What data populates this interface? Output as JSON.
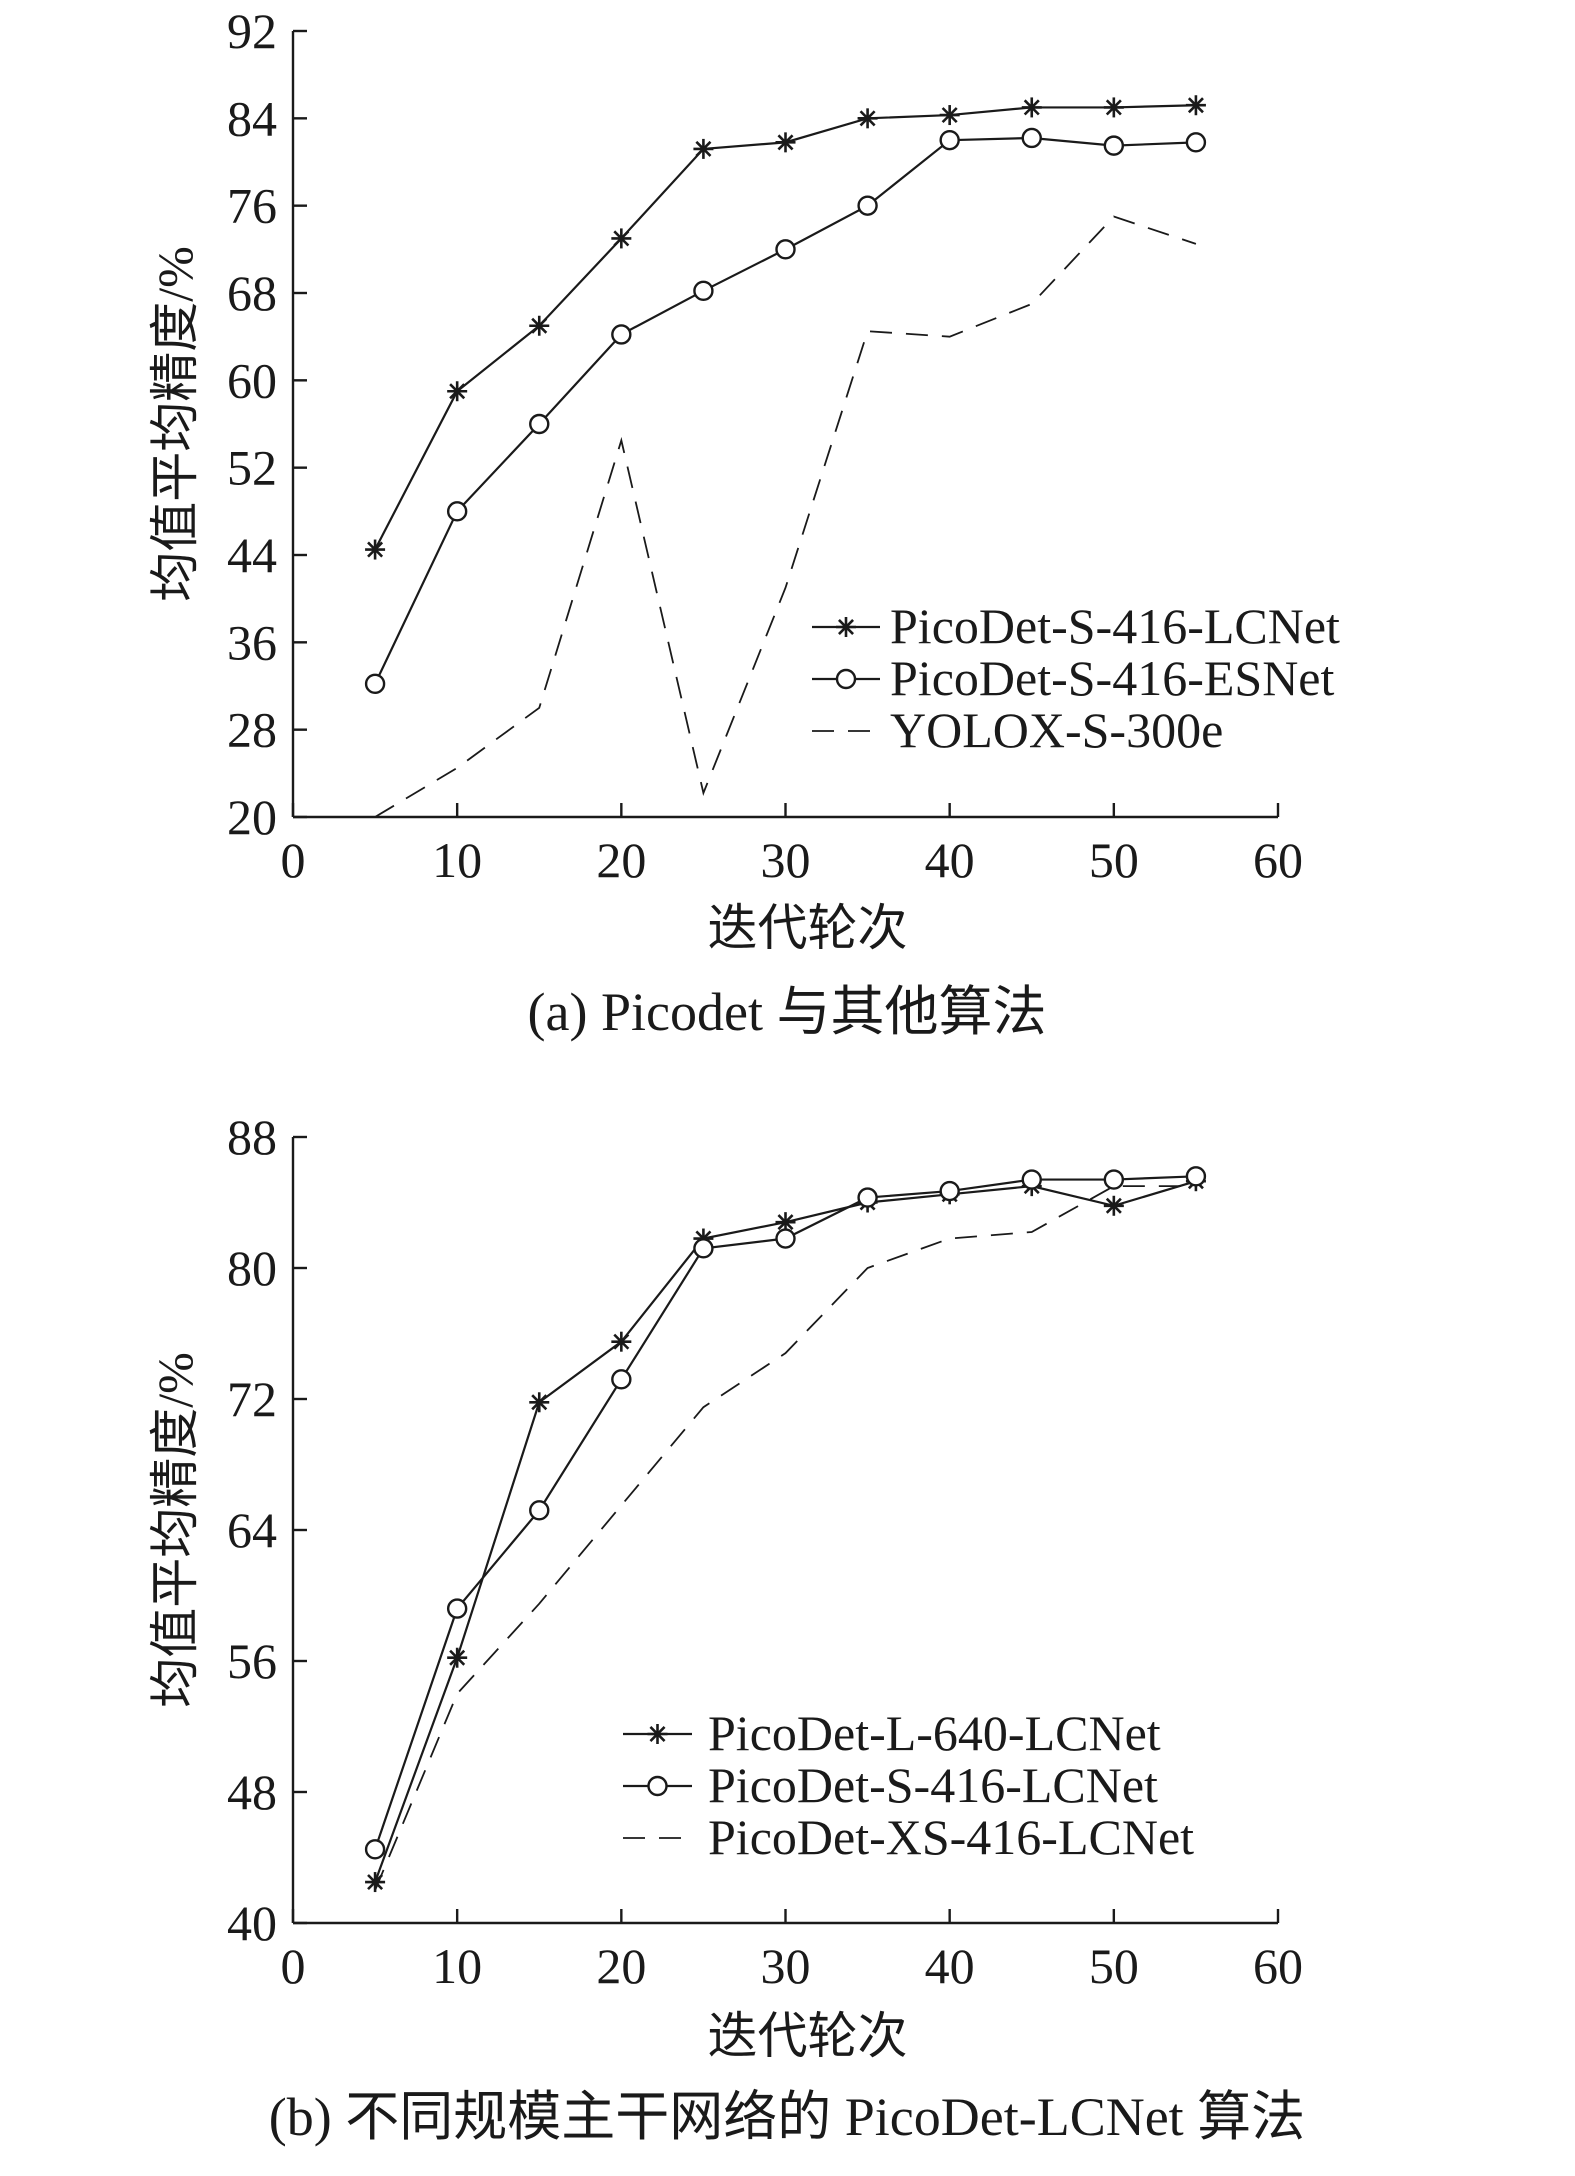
{
  "chart_data": [
    {
      "type": "line",
      "caption": "(a) Picodet 与其他算法",
      "xlabel": "迭代轮次",
      "ylabel": "均值平均精度/%",
      "xlim": [
        0,
        60
      ],
      "ylim": [
        20,
        92
      ],
      "xticks": [
        0,
        10,
        20,
        30,
        40,
        50,
        60
      ],
      "yticks": [
        20,
        28,
        36,
        44,
        52,
        60,
        68,
        76,
        84,
        92
      ],
      "legend_position": "right",
      "series": [
        {
          "name": "PicoDet-S-416-LCNet",
          "style": "asterisk-solid",
          "x": [
            5,
            10,
            15,
            20,
            25,
            30,
            35,
            40,
            45,
            50,
            55
          ],
          "y": [
            44.5,
            59,
            65,
            73,
            81.2,
            81.8,
            84,
            84.3,
            85,
            85,
            85.2
          ]
        },
        {
          "name": "PicoDet-S-416-ESNet",
          "style": "circle-solid",
          "x": [
            5,
            10,
            15,
            20,
            25,
            30,
            35,
            40,
            45,
            50,
            55
          ],
          "y": [
            32.2,
            48,
            56,
            64.2,
            68.2,
            72,
            76,
            82,
            82.2,
            81.5,
            81.8
          ]
        },
        {
          "name": "YOLOX-S-300e",
          "style": "dashed",
          "x": [
            5,
            10,
            15,
            20,
            25,
            30,
            35,
            40,
            45,
            50,
            55
          ],
          "y": [
            20,
            24.5,
            30,
            54.5,
            22.2,
            41,
            64.5,
            64,
            67,
            75,
            72.5
          ]
        }
      ]
    },
    {
      "type": "line",
      "caption": "(b) 不同规模主干网络的 PicoDet-LCNet 算法",
      "xlabel": "迭代轮次",
      "ylabel": "均值平均精度/%",
      "xlim": [
        0,
        60
      ],
      "ylim": [
        40,
        88
      ],
      "xticks": [
        0,
        10,
        20,
        30,
        40,
        50,
        60
      ],
      "yticks": [
        40,
        48,
        56,
        64,
        72,
        80,
        88
      ],
      "legend_position": "right",
      "series": [
        {
          "name": "PicoDet-L-640-LCNet",
          "style": "asterisk-solid",
          "x": [
            5,
            10,
            15,
            20,
            25,
            30,
            35,
            40,
            45,
            50,
            55
          ],
          "y": [
            42.5,
            56.2,
            71.8,
            75.5,
            81.8,
            82.8,
            84,
            84.5,
            85,
            83.8,
            85.3
          ]
        },
        {
          "name": "PicoDet-S-416-LCNet",
          "style": "circle-solid",
          "x": [
            5,
            10,
            15,
            20,
            25,
            30,
            35,
            40,
            45,
            50,
            55
          ],
          "y": [
            44.5,
            59.2,
            65.2,
            73.2,
            81.2,
            81.8,
            84.3,
            84.7,
            85.4,
            85.4,
            85.6
          ]
        },
        {
          "name": "PicoDet-XS-416-LCNet",
          "style": "dashed",
          "x": [
            5,
            10,
            15,
            20,
            25,
            30,
            35,
            40,
            45,
            50,
            55
          ],
          "y": [
            42,
            54,
            59.5,
            65.5,
            71.5,
            74.8,
            80,
            81.8,
            82.2,
            85,
            85
          ]
        }
      ]
    }
  ]
}
